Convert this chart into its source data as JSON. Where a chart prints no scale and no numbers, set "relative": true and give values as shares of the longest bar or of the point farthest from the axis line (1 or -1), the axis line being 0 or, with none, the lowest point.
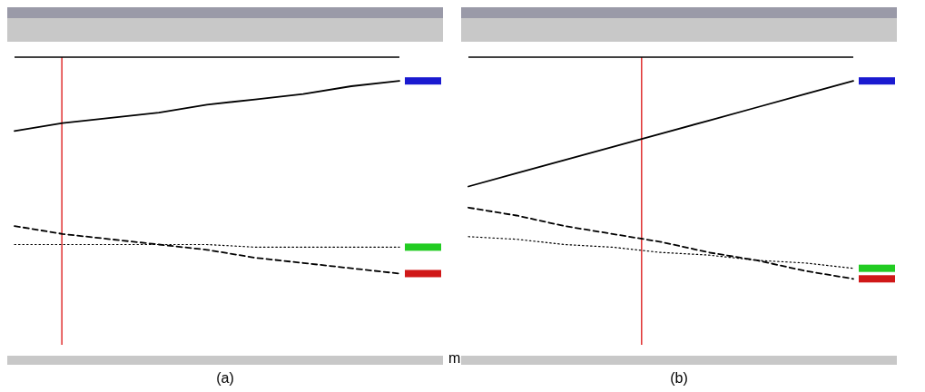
{
  "chart_data": [
    {
      "type": "line",
      "relative": true,
      "categories": [
        null,
        null,
        null,
        null,
        null,
        null,
        null,
        null,
        null
      ],
      "annotations": [
        "(a)",
        "m"
      ],
      "series": [
        {
          "color": "#000000",
          "line_style": "solid",
          "values": [
            0.81,
            0.84,
            0.86,
            0.88,
            0.91,
            0.93,
            0.95,
            0.98,
            1.0
          ]
        },
        {
          "color": "#000000",
          "line_style": "dashed",
          "values": [
            0.45,
            0.42,
            0.4,
            0.38,
            0.36,
            0.33,
            0.31,
            0.29,
            0.27
          ]
        },
        {
          "color": "#000000",
          "line_style": "dotted",
          "values": [
            0.38,
            0.38,
            0.38,
            0.38,
            0.38,
            0.37,
            0.37,
            0.37,
            0.37
          ]
        }
      ]
    },
    {
      "type": "line",
      "relative": true,
      "categories": [
        null,
        null,
        null,
        null,
        null,
        null,
        null,
        null,
        null
      ],
      "annotations": [
        "(b)"
      ],
      "series": [
        {
          "color": "#000000",
          "line_style": "solid",
          "values": [
            0.6,
            0.65,
            0.7,
            0.75,
            0.8,
            0.85,
            0.9,
            0.95,
            1.0
          ]
        },
        {
          "color": "#000000",
          "line_style": "dashed",
          "values": [
            0.52,
            0.49,
            0.45,
            0.42,
            0.39,
            0.35,
            0.32,
            0.28,
            0.25
          ]
        },
        {
          "color": "#000000",
          "line_style": "dotted",
          "values": [
            0.41,
            0.4,
            0.38,
            0.37,
            0.35,
            0.34,
            0.32,
            0.31,
            0.29
          ]
        }
      ]
    }
  ]
}
